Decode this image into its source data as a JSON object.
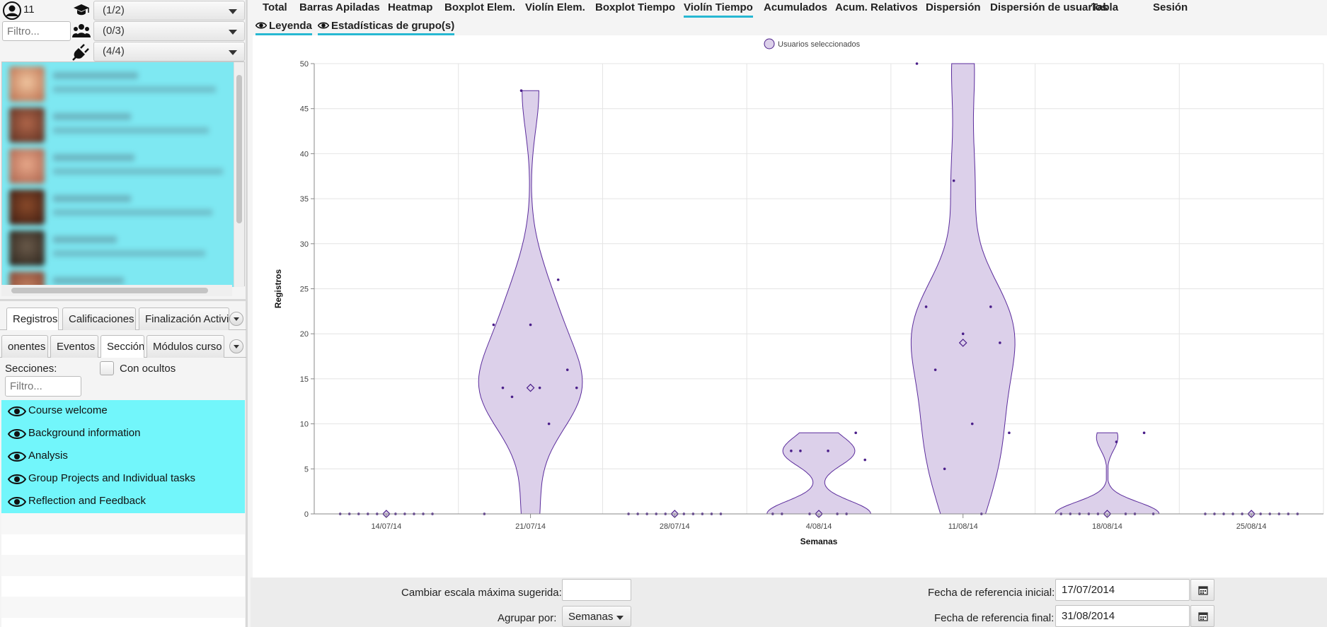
{
  "left_panel": {
    "user_count": "11",
    "course_filter": "(1/2)",
    "group_filter": "(0/3)",
    "plugin_filter": "(4/4)",
    "user_filter_placeholder": "Filtro...",
    "tabs_row1": [
      "Registros",
      "Calificaciones",
      "Finalización Activi"
    ],
    "tabs_row2": [
      "onentes",
      "Eventos",
      "Sección",
      "Módulos curso"
    ],
    "sections_label": "Secciones:",
    "show_hidden_label": "Con ocultos",
    "sections_filter_placeholder": "Filtro...",
    "sections": [
      "Course welcome",
      "Background information",
      "Analysis",
      "Group Projects and Individual tasks",
      "Reflection and Feedback"
    ]
  },
  "top_tabs": [
    "Total",
    "Barras Apiladas",
    "Heatmap",
    "Boxplot Elem.",
    "Violín Elem.",
    "Boxplot Tiempo",
    "Violín Tiempo",
    "Acumulados",
    "Acum. Relativos",
    "Dispersión",
    "Dispersión de usuarios",
    "Tabla",
    "Sesión"
  ],
  "active_tab": "Violín Tiempo",
  "sub_tabs": [
    "Leyenda",
    "Estadísticas de grupo(s)"
  ],
  "chart_data": {
    "type": "violin",
    "xlabel": "Semanas",
    "ylabel": "Registros",
    "ylim": [
      0,
      50
    ],
    "yticks": [
      0,
      5,
      10,
      15,
      20,
      25,
      30,
      35,
      40,
      45,
      50
    ],
    "categories": [
      "14/07/14",
      "21/07/14",
      "28/07/14",
      "4/08/14",
      "11/08/14",
      "18/08/14",
      "25/08/14"
    ],
    "legend": [
      "Usuarios seleccionados"
    ],
    "legend_position": "top-center",
    "grid": true,
    "series": [
      {
        "name": "Usuarios seleccionados",
        "color": "#4b1f8a",
        "fill": "#dcd0ea",
        "means": [
          0,
          14,
          0,
          0,
          19,
          0,
          0
        ],
        "points": [
          [
            0,
            0,
            0,
            0,
            0,
            0,
            0,
            0,
            0,
            0,
            0
          ],
          [
            0,
            47,
            26,
            21,
            21,
            16,
            14,
            14,
            14,
            13,
            10
          ],
          [
            0,
            0,
            0,
            0,
            0,
            0,
            0,
            0,
            0,
            0,
            0
          ],
          [
            0,
            0,
            0,
            0,
            0,
            9,
            7,
            7,
            6,
            7,
            0
          ],
          [
            50,
            37,
            23,
            23,
            20,
            19,
            16,
            10,
            9,
            5,
            0
          ],
          [
            0,
            0,
            0,
            0,
            0,
            9,
            0,
            8,
            0,
            0,
            0
          ],
          [
            0,
            0,
            0,
            0,
            0,
            0,
            0,
            0,
            0,
            0,
            0
          ]
        ]
      }
    ]
  },
  "controls": {
    "scale_label": "Cambiar escala máxima sugerida:",
    "scale_value": "",
    "group_by_label": "Agrupar por:",
    "group_by_value": "Semanas",
    "start_date_label": "Fecha de referencia inicial:",
    "start_date": "17/07/2014",
    "end_date_label": "Fecha de referencia final:",
    "end_date": "31/08/2014"
  },
  "colors": {
    "accent": "#27b8d2",
    "highlight": "#72f6fb",
    "violin_fill": "#dcd0ea",
    "violin_stroke": "#5b2c9c"
  }
}
